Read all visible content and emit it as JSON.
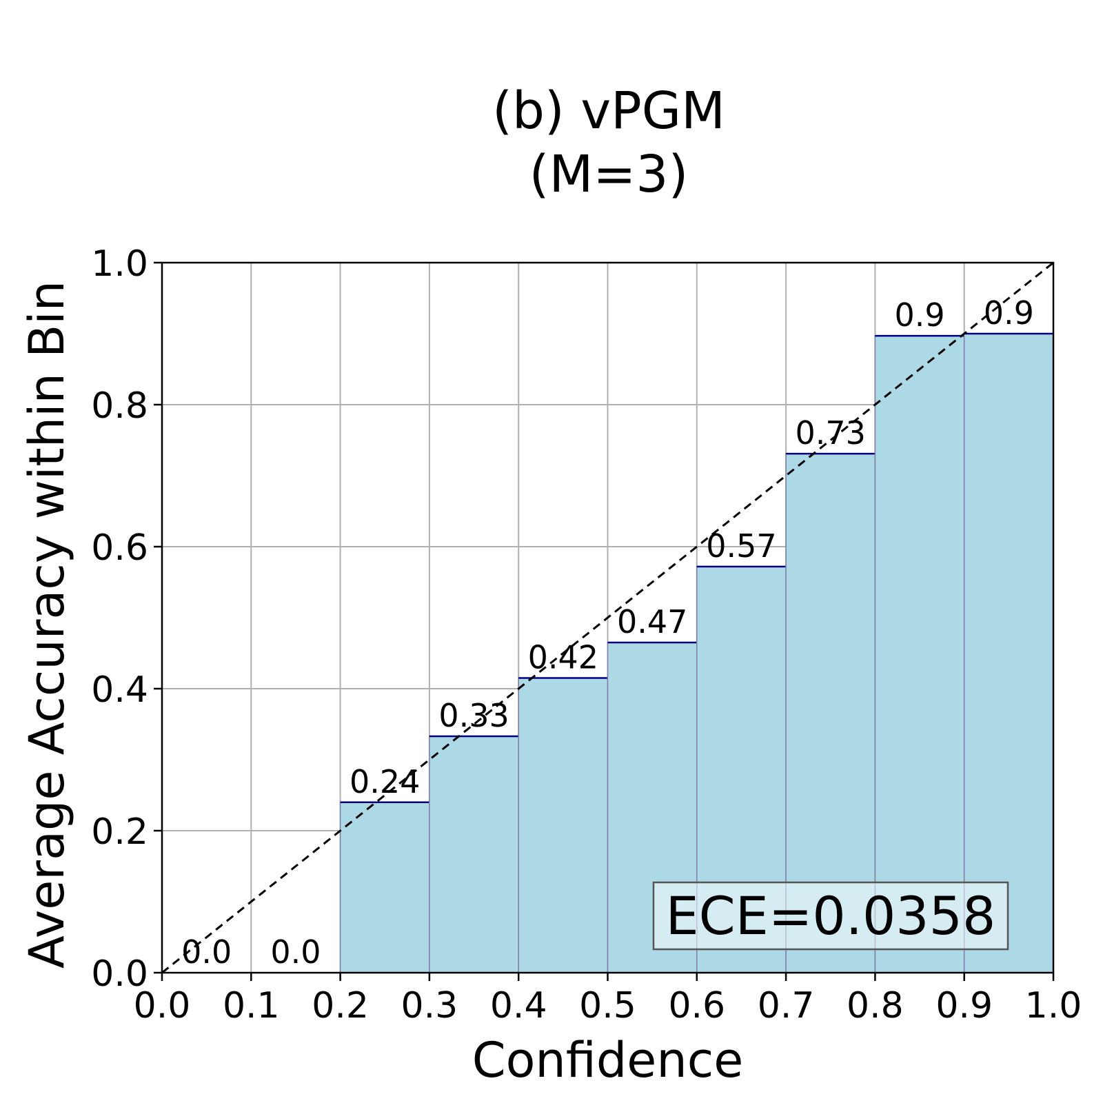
{
  "chart_data": {
    "type": "bar",
    "title": "(b) vPGM\n(M=3)",
    "title_lines": [
      "(b) vPGM",
      "(M=3)"
    ],
    "xlabel": "Confidence",
    "ylabel": "Average Accuracy within Bin",
    "xlim": [
      0.0,
      1.0
    ],
    "ylim": [
      0.0,
      1.0
    ],
    "xticks": [
      "0.0",
      "0.1",
      "0.2",
      "0.3",
      "0.4",
      "0.5",
      "0.6",
      "0.7",
      "0.8",
      "0.9",
      "1.0"
    ],
    "yticks": [
      "0.0",
      "0.2",
      "0.4",
      "0.6",
      "0.8",
      "1.0"
    ],
    "grid": true,
    "bin_edges": [
      0.0,
      0.1,
      0.2,
      0.3,
      0.4,
      0.5,
      0.6,
      0.7,
      0.8,
      0.9,
      1.0
    ],
    "values": [
      0.0,
      0.0,
      0.24,
      0.333,
      0.415,
      0.465,
      0.572,
      0.731,
      0.897,
      0.9
    ],
    "value_labels": [
      "0.0",
      "0.0",
      "0.24",
      "0.33",
      "0.42",
      "0.47",
      "0.57",
      "0.73",
      "0.9",
      "0.9"
    ],
    "reference_line": {
      "from": [
        0.0,
        0.0
      ],
      "to": [
        1.0,
        1.0
      ],
      "style": "dashed"
    },
    "annotation": "ECE=0.0358",
    "bar_color": "#add8e6",
    "bar_edge_color": "#000080"
  }
}
